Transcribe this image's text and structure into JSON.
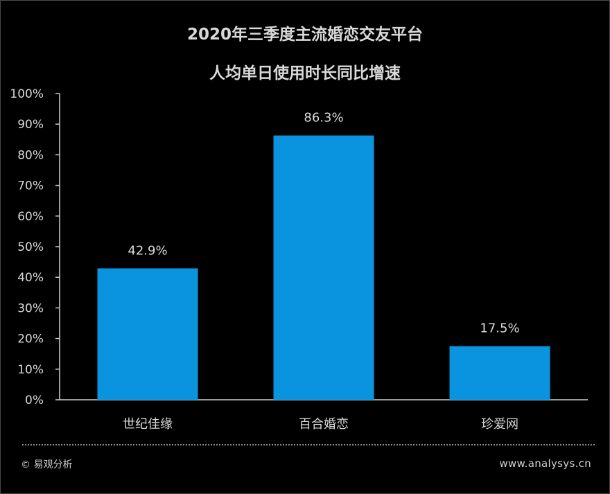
{
  "title_line1": "2020年三季度主流婚恋交友平台",
  "title_line2": "人均单日使用时长同比增速",
  "footer": {
    "copyright": "© 易观分析",
    "website": "www.analysys.cn"
  },
  "colors": {
    "bar": "#0a94e0",
    "background": "#000000",
    "text": "#d9d9d9",
    "axis": "#cfcfcf"
  },
  "chart_data": {
    "type": "bar",
    "categories": [
      "世纪佳缘",
      "百合婚恋",
      "珍爱网"
    ],
    "values": [
      42.9,
      86.3,
      17.5
    ],
    "data_labels": [
      "42.9%",
      "86.3%",
      "17.5%"
    ],
    "ylim": [
      0,
      100
    ],
    "yticks": [
      0,
      10,
      20,
      30,
      40,
      50,
      60,
      70,
      80,
      90,
      100
    ],
    "ytick_labels": [
      "0%",
      "10%",
      "20%",
      "30%",
      "40%",
      "50%",
      "60%",
      "70%",
      "80%",
      "90%",
      "100%"
    ],
    "xlabel": "",
    "ylabel": "",
    "grid": false,
    "legend": "none"
  }
}
